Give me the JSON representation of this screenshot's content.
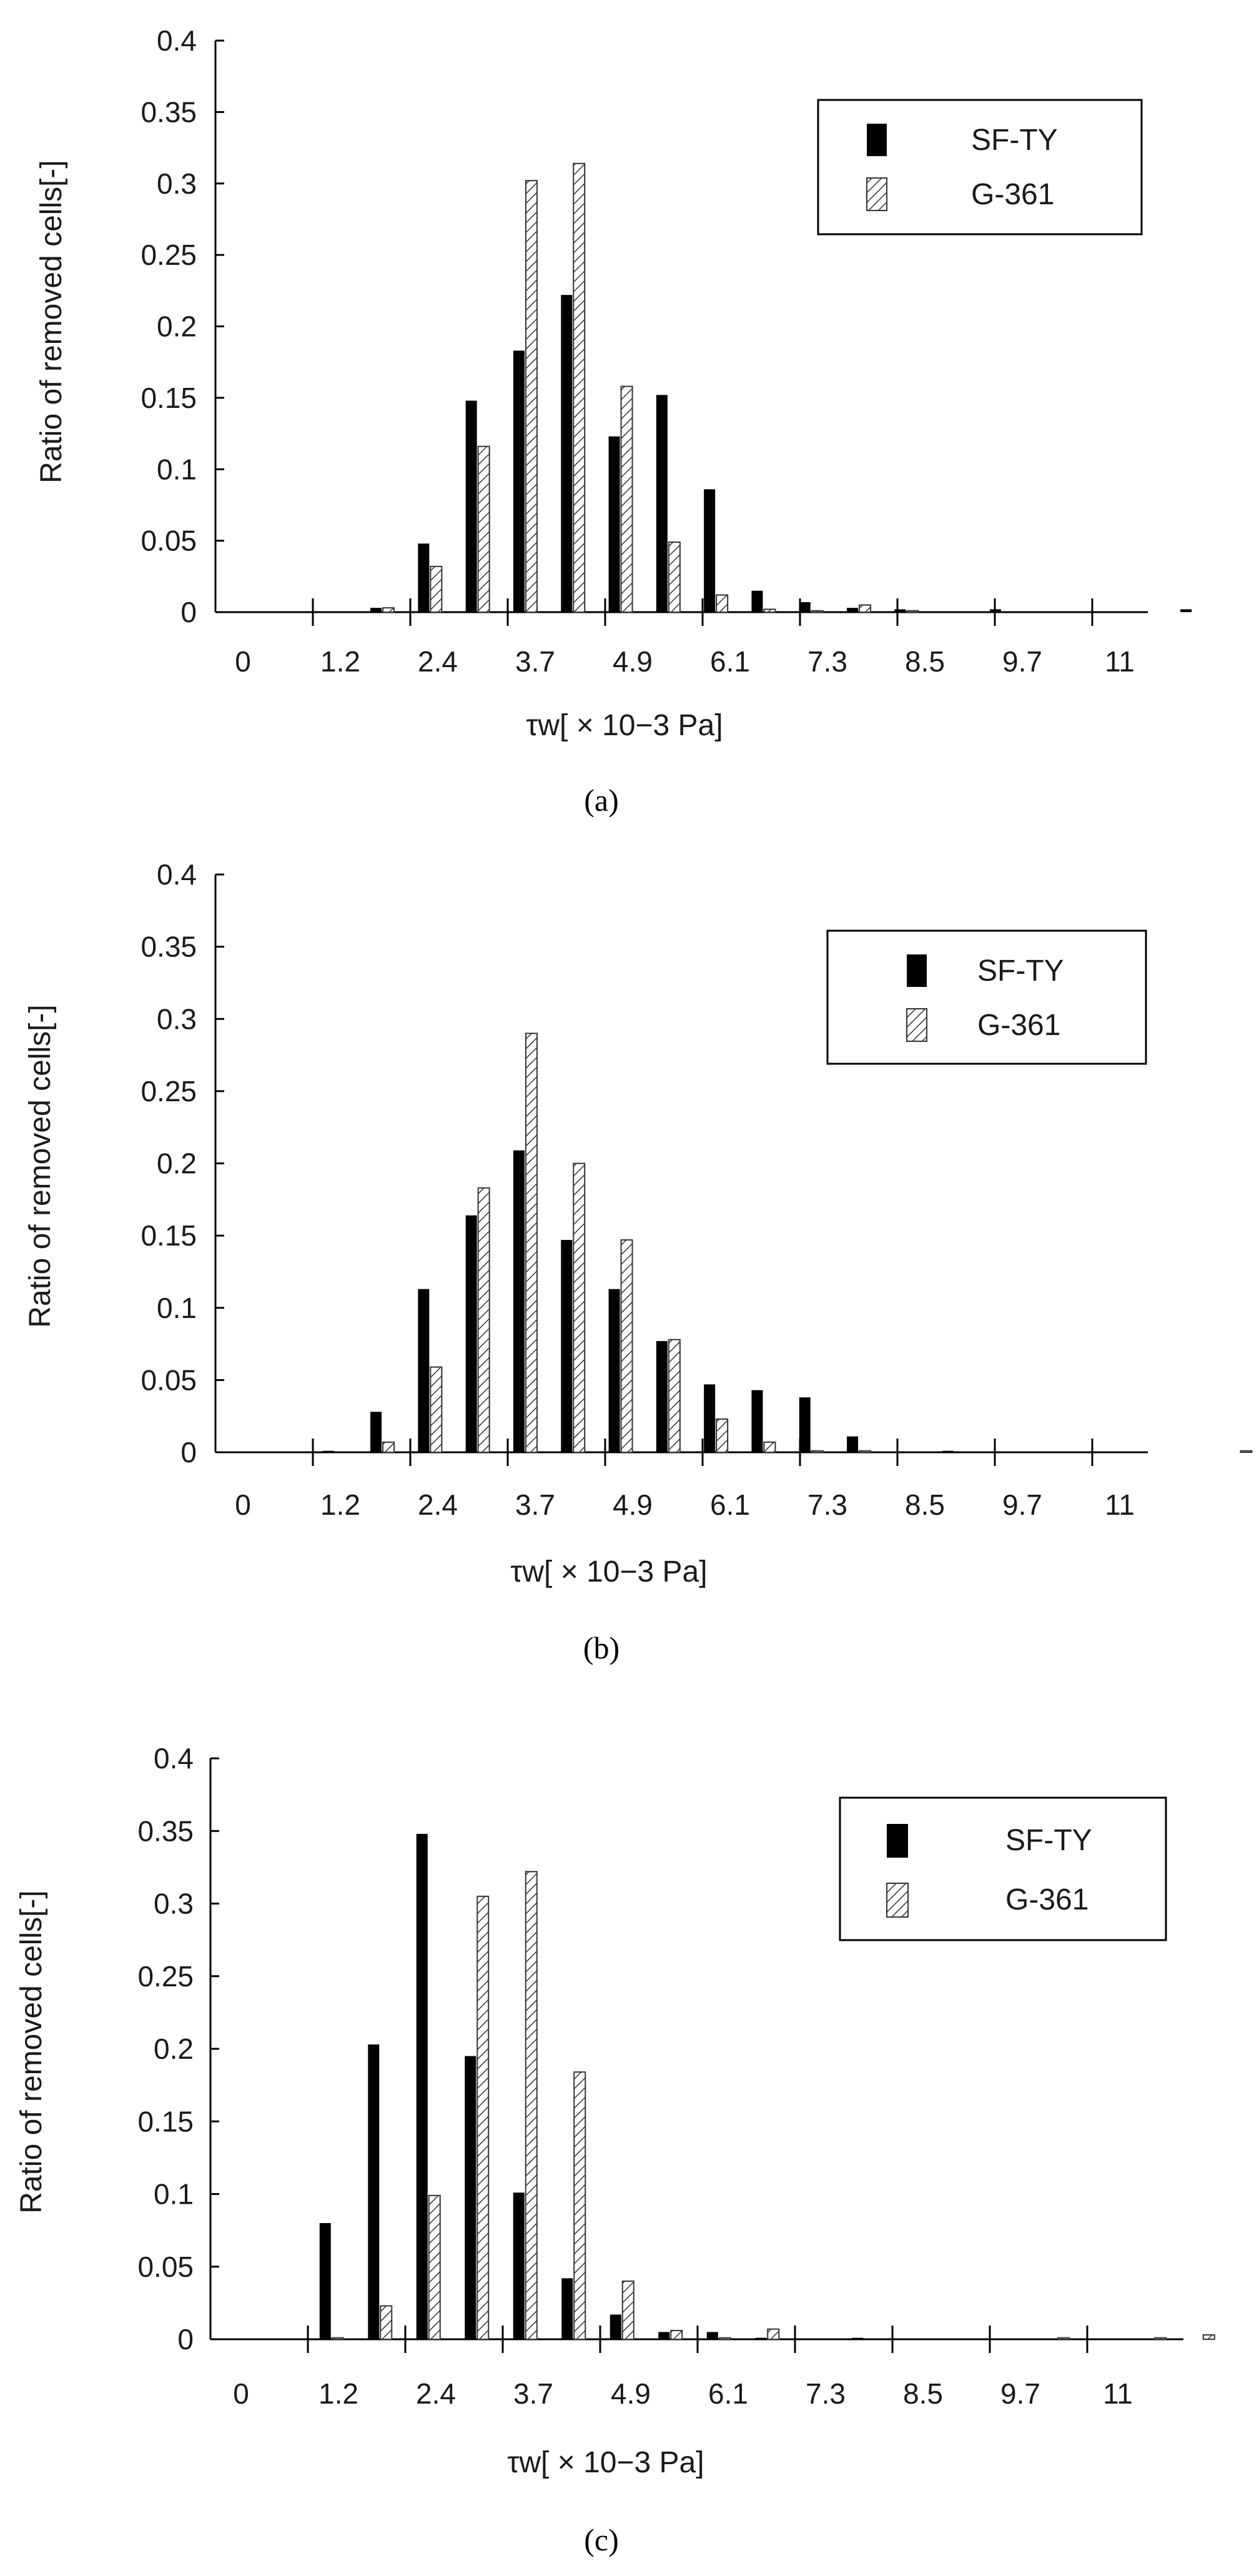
{
  "chart_data": [
    {
      "type": "bar",
      "panel_label": "(a)",
      "ylabel": "Ratio of removed cells[-]",
      "xlabel": "τw[ × 10−3 Pa]",
      "ylim": [
        0,
        0.4
      ],
      "yticks": [
        "0",
        "0.05",
        "0.1",
        "0.15",
        "0.2",
        "0.25",
        "0.3",
        "0.35",
        "0.4"
      ],
      "xticks": [
        "0",
        "1.2",
        "2.4",
        "3.7",
        "4.9",
        "6.1",
        "7.3",
        "8.5",
        "9.7",
        "11"
      ],
      "legend_position": "top-right",
      "series": [
        {
          "name": "SF-TY",
          "values": [
            0,
            0,
            0,
            0.003,
            0.048,
            0.148,
            0.183,
            0.222,
            0.123,
            0.152,
            0.086,
            0.015,
            0.007,
            0.003,
            0.002,
            0,
            0.002,
            0,
            0,
            0,
            0.002
          ]
        },
        {
          "name": "G-361",
          "values": [
            0,
            0,
            0,
            0.003,
            0.032,
            0.116,
            0.302,
            0.314,
            0.158,
            0.049,
            0.012,
            0.002,
            0.001,
            0.005,
            0.001,
            0,
            0,
            0,
            0,
            0,
            0
          ]
        }
      ]
    },
    {
      "type": "bar",
      "panel_label": "(b)",
      "ylabel": "Ratio of removed cells[-]",
      "xlabel": "τw[ × 10−3 Pa]",
      "ylim": [
        0,
        0.4
      ],
      "yticks": [
        "0",
        "0.05",
        "0.1",
        "0.15",
        "0.2",
        "0.25",
        "0.3",
        "0.35",
        "0.4"
      ],
      "xticks": [
        "0",
        "1.2",
        "2.4",
        "3.7",
        "4.9",
        "6.1",
        "7.3",
        "8.5",
        "9.7",
        "11"
      ],
      "legend_position": "top-right",
      "series": [
        {
          "name": "SF-TY",
          "values": [
            0,
            0,
            0.001,
            0.028,
            0.113,
            0.164,
            0.209,
            0.147,
            0.113,
            0.077,
            0.047,
            0.043,
            0.038,
            0.011,
            0,
            0.001,
            0,
            0,
            0,
            0,
            0,
            0
          ]
        },
        {
          "name": "G-361",
          "values": [
            0,
            0,
            0,
            0.007,
            0.059,
            0.183,
            0.29,
            0.2,
            0.147,
            0.078,
            0.023,
            0.007,
            0.001,
            0.001,
            0,
            0,
            0,
            0,
            0,
            0,
            0,
            0.001
          ]
        }
      ]
    },
    {
      "type": "bar",
      "panel_label": "(c)",
      "ylabel": "Ratio of removed cells[-]",
      "xlabel": "τw[ × 10−3 Pa]",
      "ylim": [
        0,
        0.4
      ],
      "yticks": [
        "0",
        "0.05",
        "0.1",
        "0.15",
        "0.2",
        "0.25",
        "0.3",
        "0.35",
        "0.4"
      ],
      "xticks": [
        "0",
        "1.2",
        "2.4",
        "3.7",
        "4.9",
        "6.1",
        "7.3",
        "8.5",
        "9.7",
        "11"
      ],
      "legend_position": "top-right",
      "series": [
        {
          "name": "SF-TY",
          "values": [
            0,
            0,
            0.08,
            0.203,
            0.348,
            0.195,
            0.101,
            0.042,
            0.017,
            0.005,
            0.005,
            0.001,
            0,
            0.001,
            0,
            0,
            0,
            0,
            0,
            0,
            0
          ]
        },
        {
          "name": "G-361",
          "values": [
            0,
            0,
            0.001,
            0.023,
            0.099,
            0.305,
            0.322,
            0.184,
            0.04,
            0.006,
            0.001,
            0.007,
            0,
            0,
            0,
            0,
            0,
            0.001,
            0,
            0.001,
            0.003
          ]
        }
      ]
    }
  ],
  "colors": {
    "sf_ty": "#000000",
    "g_361_hatch": "#333333",
    "axis": "#000000"
  }
}
